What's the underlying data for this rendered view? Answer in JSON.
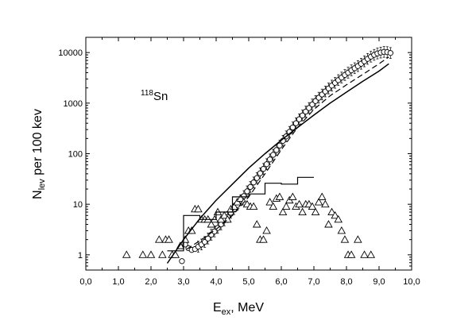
{
  "chart_data": {
    "type": "scatter",
    "xlabel": "E",
    "xlabel_sub": "ex",
    "xlabel_suffix": ", MeV",
    "ylabel": "N",
    "ylabel_sub": "lev",
    "ylabel_suffix": " per 100 kev",
    "annotation": {
      "sup": "118",
      "text": "Sn"
    },
    "xlim": [
      0,
      10
    ],
    "ylim": [
      0.5,
      20000
    ],
    "yscale": "log",
    "x_ticks": [
      "0,0",
      "1,0",
      "2,0",
      "3,0",
      "4,0",
      "5,0",
      "6,0",
      "7,0",
      "8,0",
      "9,0",
      "10,0"
    ],
    "y_ticks": [
      {
        "value": 1,
        "label": "1"
      },
      {
        "value": 10,
        "label": "10"
      },
      {
        "value": 100,
        "label": "100"
      },
      {
        "value": 1000,
        "label": "1000"
      },
      {
        "value": 10000,
        "label": "10000"
      }
    ],
    "grid": false,
    "series": [
      {
        "marker": "circle-errorbars",
        "points": [
          [
            2.95,
            0.75
          ],
          [
            3.05,
            1.6
          ],
          [
            3.15,
            1.35
          ],
          [
            3.25,
            1.25
          ],
          [
            3.35,
            1.3
          ],
          [
            3.45,
            1.45
          ],
          [
            3.55,
            1.6
          ],
          [
            3.65,
            1.8
          ],
          [
            3.75,
            2.1
          ],
          [
            3.85,
            2.5
          ],
          [
            3.95,
            2.9
          ],
          [
            4.05,
            3.4
          ],
          [
            4.15,
            4.0
          ],
          [
            4.25,
            4.8
          ],
          [
            4.35,
            5.6
          ],
          [
            4.45,
            6.8
          ],
          [
            4.55,
            8.0
          ],
          [
            4.65,
            9.7
          ],
          [
            4.75,
            12
          ],
          [
            4.85,
            14.5
          ],
          [
            4.95,
            18
          ],
          [
            5.05,
            22
          ],
          [
            5.15,
            27
          ],
          [
            5.25,
            33
          ],
          [
            5.35,
            41
          ],
          [
            5.45,
            50
          ],
          [
            5.55,
            62
          ],
          [
            5.65,
            77
          ],
          [
            5.75,
            95
          ],
          [
            5.85,
            118
          ],
          [
            5.95,
            145
          ],
          [
            6.05,
            180
          ],
          [
            6.15,
            220
          ],
          [
            6.25,
            270
          ],
          [
            6.35,
            330
          ],
          [
            6.45,
            400
          ],
          [
            6.55,
            480
          ],
          [
            6.65,
            570
          ],
          [
            6.75,
            680
          ],
          [
            6.85,
            800
          ],
          [
            6.95,
            940
          ],
          [
            7.05,
            1100
          ],
          [
            7.15,
            1280
          ],
          [
            7.25,
            1480
          ],
          [
            7.35,
            1700
          ],
          [
            7.45,
            1950
          ],
          [
            7.55,
            2220
          ],
          [
            7.65,
            2520
          ],
          [
            7.75,
            2850
          ],
          [
            7.85,
            3200
          ],
          [
            7.95,
            3600
          ],
          [
            8.05,
            4000
          ],
          [
            8.15,
            4450
          ],
          [
            8.25,
            4900
          ],
          [
            8.35,
            5400
          ],
          [
            8.45,
            6000
          ],
          [
            8.55,
            6700
          ],
          [
            8.65,
            7500
          ],
          [
            8.75,
            8300
          ],
          [
            8.85,
            9000
          ],
          [
            8.95,
            9600
          ],
          [
            9.05,
            10000
          ],
          [
            9.15,
            10300
          ],
          [
            9.25,
            10200
          ],
          [
            9.35,
            9800
          ]
        ]
      },
      {
        "marker": "triangle",
        "points": [
          [
            1.25,
            1
          ],
          [
            1.75,
            1
          ],
          [
            2.0,
            1
          ],
          [
            2.25,
            2
          ],
          [
            2.35,
            1
          ],
          [
            2.45,
            2
          ],
          [
            2.55,
            2
          ],
          [
            2.65,
            1
          ],
          [
            2.75,
            1
          ],
          [
            2.9,
            1.5
          ],
          [
            3.05,
            2
          ],
          [
            3.15,
            3
          ],
          [
            3.25,
            3
          ],
          [
            3.35,
            8
          ],
          [
            3.45,
            8
          ],
          [
            3.55,
            5
          ],
          [
            3.65,
            5
          ],
          [
            3.75,
            5
          ],
          [
            3.85,
            4
          ],
          [
            3.95,
            5
          ],
          [
            4.05,
            7
          ],
          [
            4.15,
            5
          ],
          [
            4.25,
            6
          ],
          [
            4.35,
            5
          ],
          [
            4.45,
            8
          ],
          [
            4.55,
            9
          ],
          [
            4.65,
            11
          ],
          [
            4.75,
            13
          ],
          [
            4.85,
            11
          ],
          [
            4.95,
            10
          ],
          [
            5.05,
            9
          ],
          [
            5.15,
            9
          ],
          [
            5.25,
            4
          ],
          [
            5.35,
            2
          ],
          [
            5.45,
            2
          ],
          [
            5.55,
            3
          ],
          [
            5.65,
            11
          ],
          [
            5.75,
            9
          ],
          [
            5.85,
            13
          ],
          [
            5.95,
            14
          ],
          [
            6.05,
            7
          ],
          [
            6.15,
            9
          ],
          [
            6.25,
            12
          ],
          [
            6.35,
            14
          ],
          [
            6.45,
            9
          ],
          [
            6.55,
            10
          ],
          [
            6.65,
            7
          ],
          [
            6.75,
            10
          ],
          [
            6.85,
            10
          ],
          [
            6.95,
            9
          ],
          [
            7.05,
            7
          ],
          [
            7.15,
            11
          ],
          [
            7.25,
            14
          ],
          [
            7.35,
            10
          ],
          [
            7.45,
            4
          ],
          [
            7.55,
            7
          ],
          [
            7.65,
            6
          ],
          [
            7.75,
            5
          ],
          [
            7.85,
            3
          ],
          [
            7.95,
            2
          ],
          [
            8.05,
            1
          ],
          [
            8.15,
            1
          ],
          [
            8.35,
            2
          ],
          [
            8.55,
            1
          ],
          [
            8.75,
            1
          ]
        ]
      },
      {
        "style": "solid",
        "points": [
          [
            2.5,
            0.68
          ],
          [
            3.0,
            2.0
          ],
          [
            3.5,
            5.2
          ],
          [
            4.0,
            12
          ],
          [
            4.5,
            25
          ],
          [
            5.0,
            52
          ],
          [
            5.5,
            100
          ],
          [
            6.0,
            185
          ],
          [
            6.5,
            330
          ],
          [
            7.0,
            580
          ],
          [
            7.5,
            1000
          ],
          [
            8.0,
            1650
          ],
          [
            8.5,
            2700
          ],
          [
            9.0,
            4300
          ],
          [
            9.3,
            6000
          ]
        ]
      },
      {
        "style": "dashed",
        "points": [
          [
            3.1,
            1.3
          ],
          [
            3.5,
            1.9
          ],
          [
            4.0,
            3.2
          ],
          [
            4.5,
            6.0
          ],
          [
            5.0,
            14
          ],
          [
            5.5,
            40
          ],
          [
            6.0,
            120
          ],
          [
            6.5,
            330
          ],
          [
            7.0,
            750
          ],
          [
            7.5,
            1400
          ],
          [
            8.0,
            2300
          ],
          [
            8.5,
            3700
          ],
          [
            9.0,
            6000
          ],
          [
            9.3,
            8200
          ]
        ]
      },
      {
        "style": "step",
        "points": [
          [
            2.5,
            1.2
          ],
          [
            3.0,
            1.2
          ],
          [
            3.0,
            6
          ],
          [
            3.5,
            6
          ],
          [
            3.5,
            5
          ],
          [
            4.0,
            5
          ],
          [
            4.0,
            7
          ],
          [
            4.5,
            7
          ],
          [
            4.5,
            14
          ],
          [
            5.0,
            14
          ],
          [
            5.0,
            16
          ],
          [
            5.5,
            16
          ],
          [
            5.5,
            26
          ],
          [
            6.0,
            26
          ],
          [
            6.0,
            25
          ],
          [
            6.5,
            25
          ],
          [
            6.5,
            34
          ],
          [
            7.0,
            34
          ]
        ]
      }
    ]
  }
}
